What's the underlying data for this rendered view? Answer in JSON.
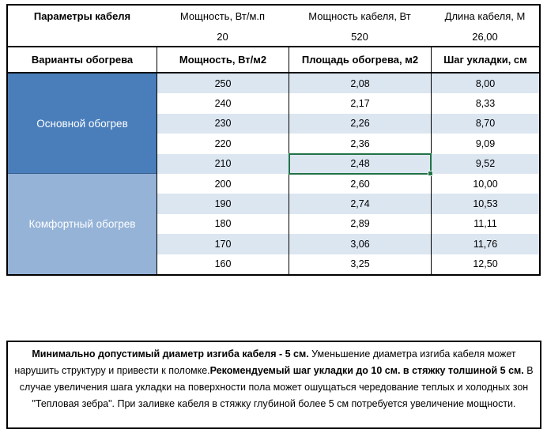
{
  "colors": {
    "group_primary_bg": "#4A7EBB",
    "group_comfort_bg": "#95B3D7",
    "row_band_bg": "#DCE6F1",
    "selection_green": "#217346",
    "grid_line": "#000000"
  },
  "params": {
    "title": "Параметры кабеля",
    "columns": [
      {
        "label": "Мощность, Вт/м.п",
        "value": "20"
      },
      {
        "label": "Мощность кабеля, Вт",
        "value": "520"
      },
      {
        "label": "Длина кабеля, М",
        "value": "26,00"
      }
    ]
  },
  "table": {
    "headers": [
      "Варианты обогрева",
      "Мощность, Вт/м2",
      "Площадь обогрева, м2",
      "Шаг укладки, см"
    ],
    "groups": [
      {
        "label": "Основной обогрев",
        "rows": [
          [
            "250",
            "2,08",
            "8,00"
          ],
          [
            "240",
            "2,17",
            "8,33"
          ],
          [
            "230",
            "2,26",
            "8,70"
          ],
          [
            "220",
            "2,36",
            "9,09"
          ],
          [
            "210",
            "2,48",
            "9,52"
          ]
        ]
      },
      {
        "label": "Комфортный обогрев",
        "rows": [
          [
            "200",
            "2,60",
            "10,00"
          ],
          [
            "190",
            "2,74",
            "10,53"
          ],
          [
            "180",
            "2,89",
            "11,11"
          ],
          [
            "170",
            "3,06",
            "11,76"
          ],
          [
            "160",
            "3,25",
            "12,50"
          ]
        ]
      }
    ],
    "selected_cell": {
      "group": "Основной обогрев",
      "power": "210",
      "column": "Площадь обогрева, м2",
      "value": "2,48"
    }
  },
  "note": {
    "runs": [
      {
        "text": "Минимально допустимый диаметр изгиба кабеля - 5 см.",
        "bold": true
      },
      {
        "text": " Уменьшение диаметра изгиба кабеля может нарушить структуру и привести к поломке.",
        "bold": false
      },
      {
        "text": "Рекомендуемый шаг укладки до 10 см. в стяжку толшиной 5 см.",
        "bold": true
      },
      {
        "text": " В случае увеличения шага укладки на поверхности пола может ошущаться чередование теплых и холодных зон \"Тепловая зебра\". При заливке кабеля в стяжку глубиной более 5 см потребуется увеличение мощности.",
        "bold": false
      }
    ]
  }
}
